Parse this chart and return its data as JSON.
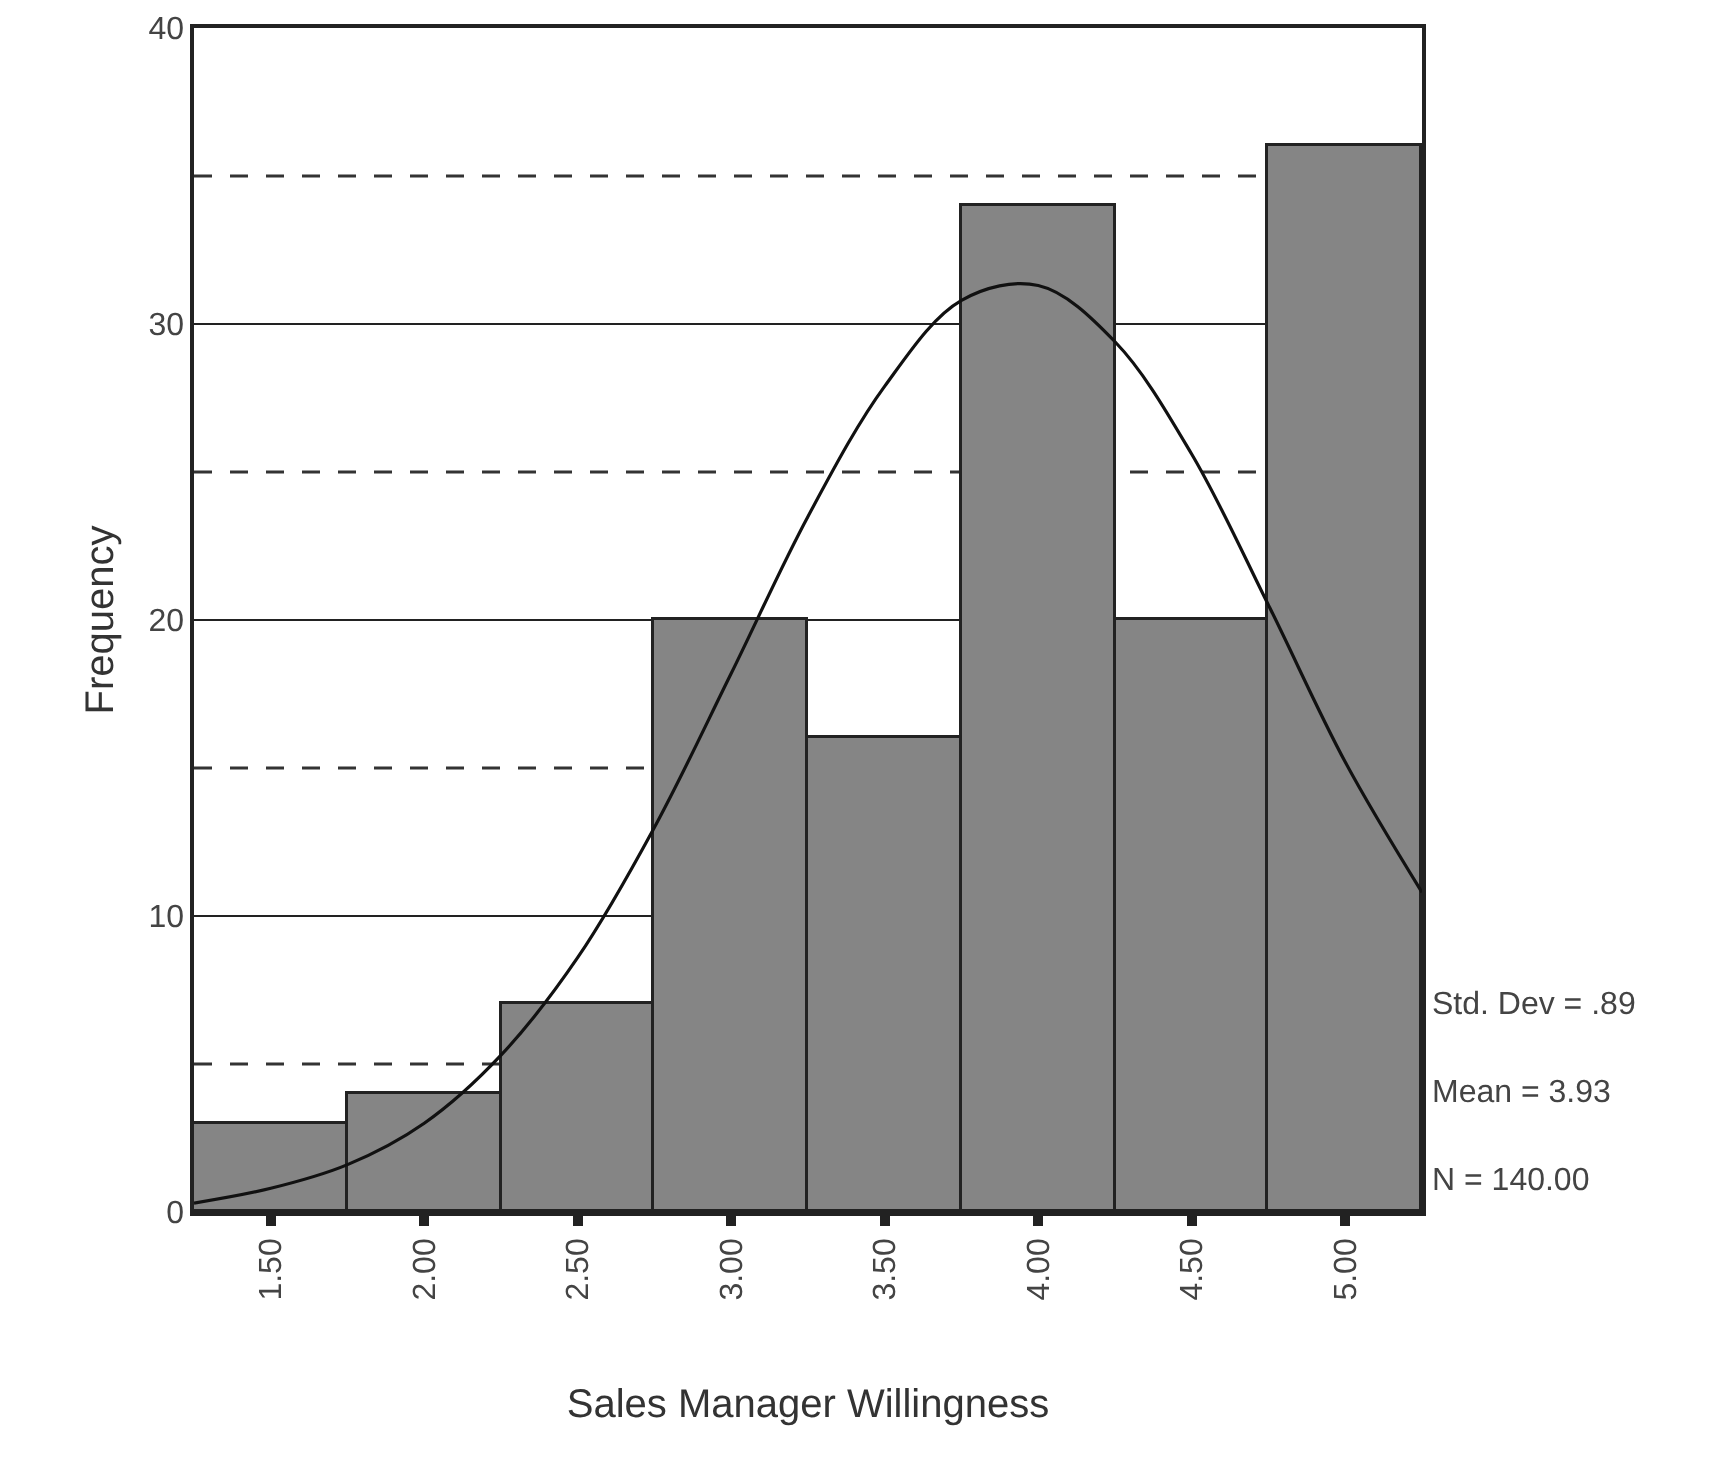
{
  "chart_data": {
    "type": "histogram",
    "xlabel": "Sales Manager Willingness",
    "ylabel": "Frequency",
    "bins": [
      1.25,
      1.75,
      2.25,
      2.75,
      3.25,
      3.75,
      4.25,
      4.75,
      5.25
    ],
    "series": [
      {
        "color": "#858585",
        "values": [
          3,
          4,
          7,
          20,
          16,
          34,
          20,
          36
        ]
      },
      {
        "type": "line",
        "color": "#111111",
        "x": [
          1.25,
          1.5,
          1.75,
          2.0,
          2.25,
          2.5,
          2.75,
          3.0,
          3.25,
          3.5,
          3.75,
          4.0,
          4.25,
          4.5,
          4.75,
          5.0,
          5.25
        ],
        "values": [
          0.3,
          0.8,
          1.6,
          3.0,
          5.3,
          8.6,
          13.0,
          18.2,
          23.5,
          27.9,
          30.8,
          31.3,
          29.4,
          25.6,
          20.5,
          15.2,
          10.8
        ]
      }
    ],
    "xlim": [
      1.25,
      5.25
    ],
    "xticks": [
      {
        "value": 1.5,
        "label": "1.50"
      },
      {
        "value": 2,
        "label": "2.00"
      },
      {
        "value": 2.5,
        "label": "2.50"
      },
      {
        "value": 3,
        "label": "3.00"
      },
      {
        "value": 3.5,
        "label": "3.50"
      },
      {
        "value": 4,
        "label": "4.00"
      },
      {
        "value": 4.5,
        "label": "4.50"
      },
      {
        "value": 5,
        "label": "5.00"
      }
    ],
    "ylim": [
      0,
      40
    ],
    "yticks": [
      0,
      10,
      20,
      30,
      40
    ],
    "grid": "y",
    "ref_lines": [
      {
        "axis": "y",
        "value": 5,
        "line_style": "dashed",
        "color": "#333333"
      },
      {
        "axis": "y",
        "value": 15,
        "line_style": "dashed",
        "color": "#333333"
      },
      {
        "axis": "y",
        "value": 25,
        "line_style": "dashed",
        "color": "#333333"
      },
      {
        "axis": "y",
        "value": 35,
        "line_style": "dashed",
        "color": "#333333"
      }
    ],
    "annotations": [
      "Std. Dev = .89",
      "Mean = 3.93",
      "N = 140.00"
    ]
  }
}
